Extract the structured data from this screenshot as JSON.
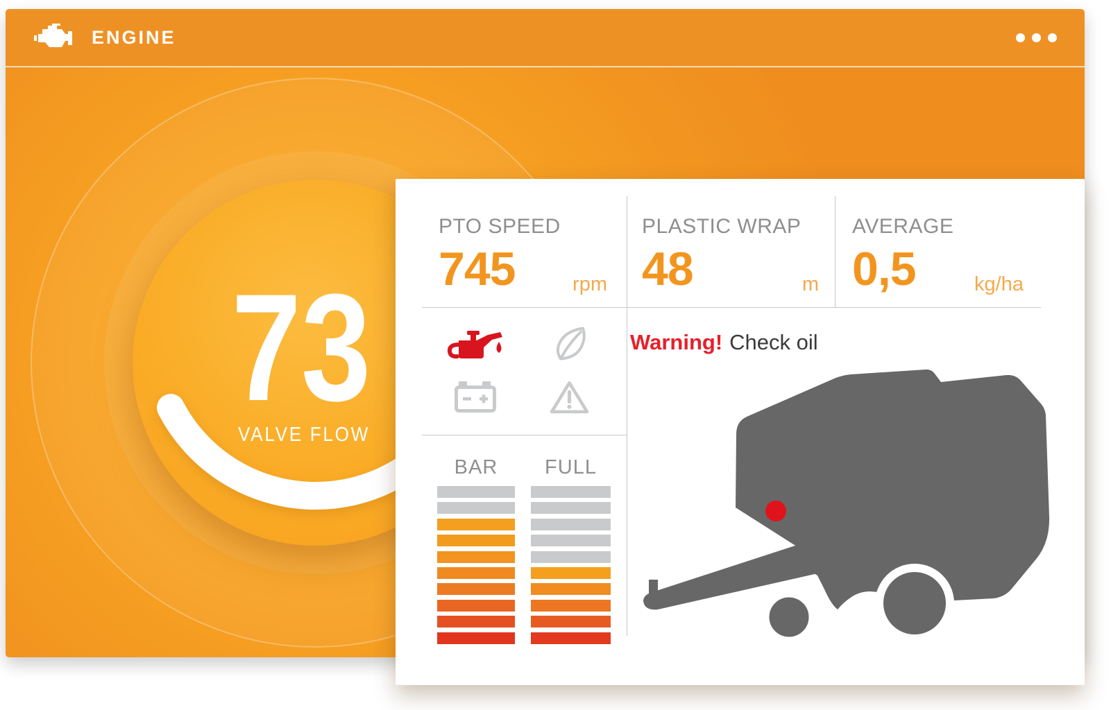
{
  "header": {
    "title": "ENGINE",
    "menu_icon": "more-options"
  },
  "gauge": {
    "value": "73",
    "label": "VALVE FLOW"
  },
  "card": {
    "metrics": [
      {
        "label": "PTO SPEED",
        "value": "745",
        "unit": "rpm"
      },
      {
        "label": "PLASTIC WRAP",
        "value": "48",
        "unit": "m"
      },
      {
        "label": "AVERAGE",
        "value": "0,5",
        "unit": "kg/ha"
      }
    ],
    "warning": {
      "prefix": "Warning!",
      "message": "Check oil"
    },
    "indicators": [
      {
        "name": "oil-pressure",
        "state": "alert",
        "color": "#D8151E"
      },
      {
        "name": "eco-leaf",
        "state": "normal",
        "color": "#C9CACB"
      },
      {
        "name": "battery",
        "state": "normal",
        "color": "#C9CACB"
      },
      {
        "name": "warning-triangle",
        "state": "normal",
        "color": "#C9CACB"
      }
    ],
    "levels": {
      "empty_color": "#C9CACB",
      "columns": [
        {
          "label": "BAR",
          "segments": 10,
          "filled": 8,
          "fill_colors": [
            "#F4A01E",
            "#F39B1F",
            "#F2941F",
            "#EF8A20",
            "#EC7B21",
            "#E96723",
            "#E55023",
            "#E1351E"
          ]
        },
        {
          "label": "FULL",
          "segments": 10,
          "filled": 5,
          "fill_colors": [
            "#F4A01E",
            "#F08C20",
            "#EC7621",
            "#E75B23",
            "#E13A1E"
          ]
        }
      ]
    },
    "illustration": {
      "name": "round-baler",
      "alert_marker": true
    }
  },
  "colors": {
    "header_bg": "#EE9125",
    "panel_orange": "#F4991F",
    "value_orange": "#F2951F",
    "unit_orange": "#F5A94C",
    "label_gray": "#8E8E8E",
    "divider_gray": "#C8C8C8",
    "warning_red": "#E6212A",
    "text_dark": "#3B3B3B",
    "machine_gray": "#676767",
    "alert_dot_red": "#E0131C",
    "gauge_text": "#FFFFFF"
  }
}
